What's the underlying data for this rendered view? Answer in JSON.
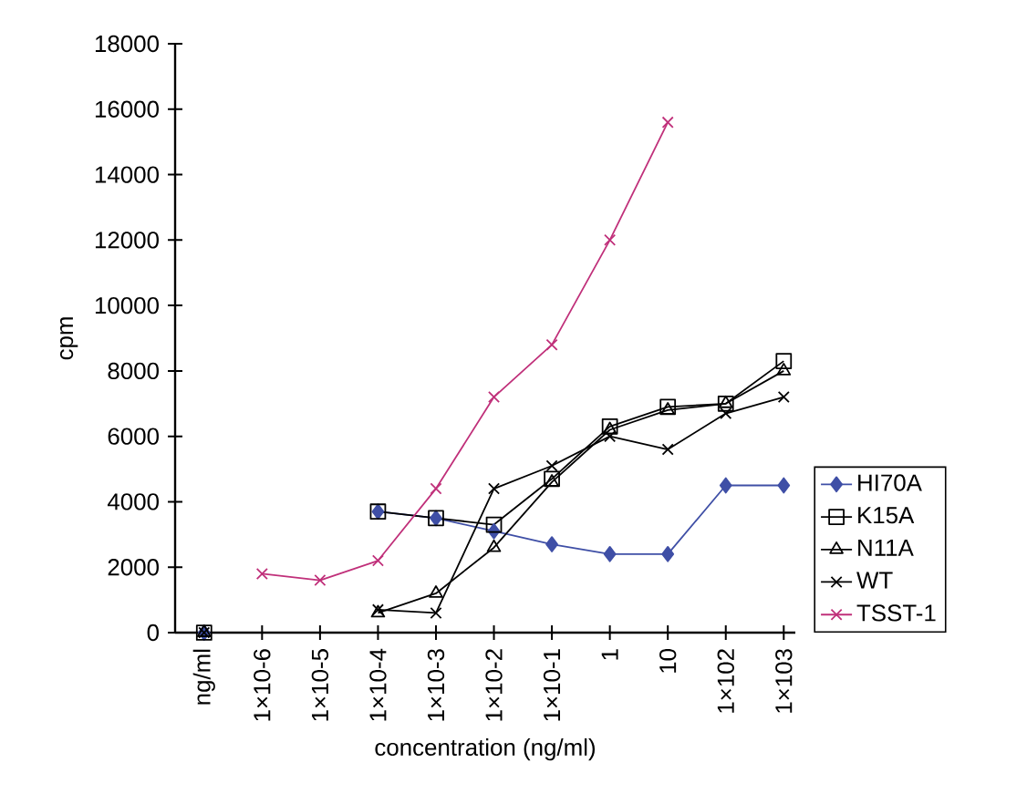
{
  "chart_data": {
    "type": "line",
    "xlabel": "concentration (ng/ml)",
    "ylabel": "cpm",
    "categories": [
      "ng/ml",
      "1×10-6",
      "1×10-5",
      "1×10-4",
      "1×10-3",
      "1×10-2",
      "1×10-1",
      "1",
      "10",
      "1×102",
      "1×103"
    ],
    "ylim": [
      0,
      18000
    ],
    "yticks": [
      0,
      2000,
      4000,
      6000,
      8000,
      10000,
      12000,
      14000,
      16000,
      18000
    ],
    "legend": "bottom right",
    "grid": false,
    "series": [
      {
        "name": "HI70A",
        "color": "#3f4fa6",
        "marker": "diamond",
        "values": [
          0,
          null,
          null,
          3700,
          3500,
          3100,
          2700,
          2400,
          2400,
          4500,
          4500
        ]
      },
      {
        "name": "K15A",
        "color": "#000000",
        "marker": "square",
        "values": [
          0,
          null,
          null,
          3700,
          3500,
          3300,
          4700,
          6300,
          6900,
          7000,
          8300
        ]
      },
      {
        "name": "N11A",
        "color": "#000000",
        "marker": "triangle",
        "values": [
          0,
          null,
          null,
          600,
          1200,
          2600,
          4600,
          6200,
          6800,
          7000,
          8000
        ]
      },
      {
        "name": "WT",
        "color": "#000000",
        "marker": "cross",
        "values": [
          0,
          null,
          null,
          700,
          600,
          4400,
          5100,
          6000,
          5600,
          6700,
          7200
        ]
      },
      {
        "name": "TSST-1",
        "color": "#c0307a",
        "marker": "cross",
        "values": [
          null,
          1800,
          1600,
          2200,
          4400,
          7200,
          8800,
          12000,
          15600,
          null,
          null
        ]
      }
    ]
  }
}
